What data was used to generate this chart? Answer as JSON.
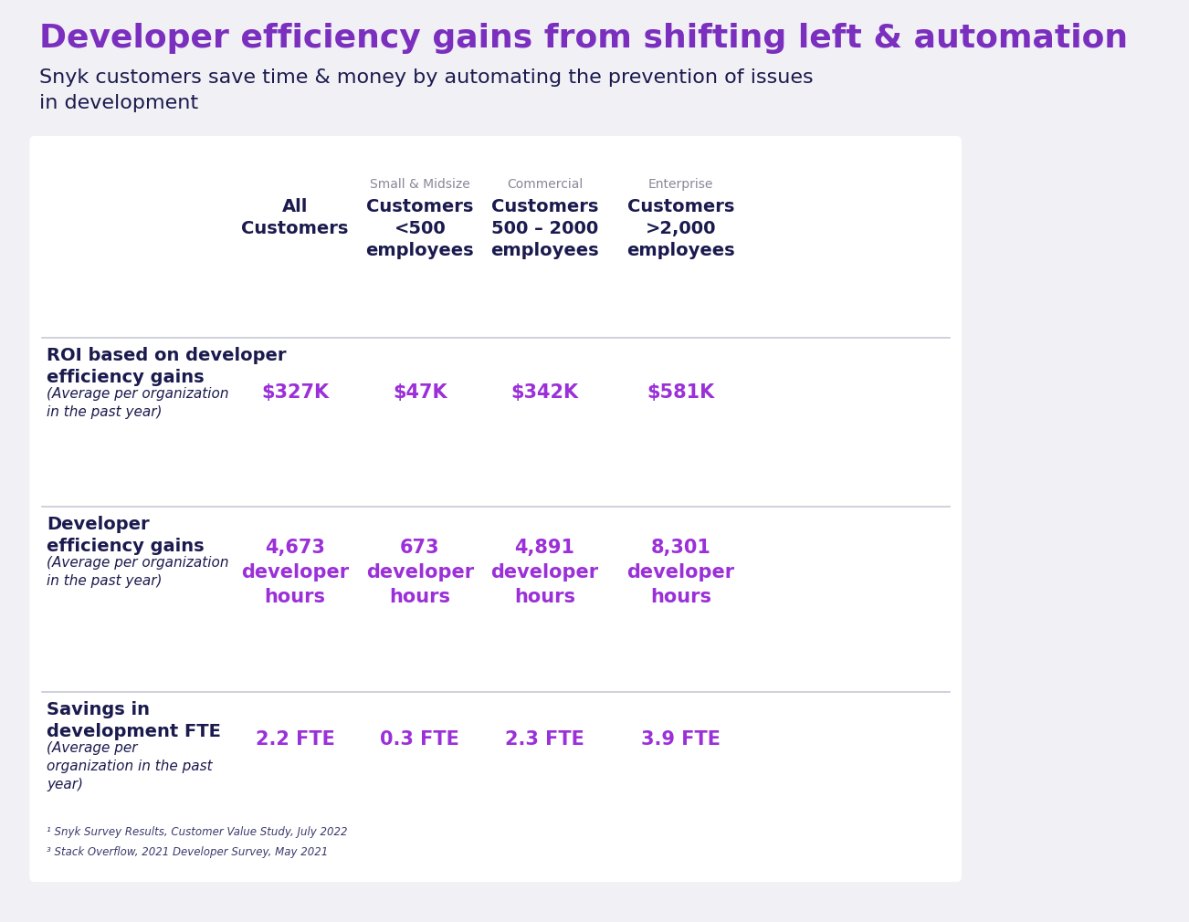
{
  "title": "Developer efficiency gains from shifting left & automation",
  "subtitle": "Snyk customers save time & money by automating the prevention of issues\nin development",
  "title_color": "#7B2FBE",
  "subtitle_color": "#1a1a4e",
  "bg_color": "#f0f0f5",
  "table_bg_color": "#ffffff",
  "purple_value_color": "#9B30D9",
  "dark_navy_color": "#1a1a4e",
  "gray_text_color": "#888899",
  "footnote_color": "#3a3a6e",
  "col_headers": [
    {
      "small": "",
      "large": "All\nCustomers"
    },
    {
      "small": "Small & Midsize",
      "large": "Customers\n<500\nemployees"
    },
    {
      "small": "Commercial",
      "large": "Customers\n500 – 2000\nemployees"
    },
    {
      "small": "Enterprise",
      "large": "Customers\n>2,000\nemployees"
    }
  ],
  "rows": [
    {
      "label_bold": "ROI based on developer\nefficiency gains",
      "label_italic": "(Average per organization\nin the past year)",
      "values": [
        "$327K",
        "$47K",
        "$342K",
        "$581K"
      ]
    },
    {
      "label_bold": "Developer\nefficiency gains",
      "label_italic": "(Average per organization\nin the past year)",
      "values": [
        "4,673\ndeveloper\nhours",
        "673\ndeveloper\nhours",
        "4,891\ndeveloper\nhours",
        "8,301\ndeveloper\nhours"
      ]
    },
    {
      "label_bold": "Savings in\ndevelopment FTE",
      "label_italic": "(Average per\norganization in the past\nyear)",
      "values": [
        "2.2 FTE",
        "0.3 FTE",
        "2.3 FTE",
        "3.9 FTE"
      ]
    }
  ],
  "footnotes": [
    "¹ Snyk Survey Results, Customer Value Study, July 2022",
    "³ Stack Overflow, 2021 Developer Survey, May 2021"
  ]
}
